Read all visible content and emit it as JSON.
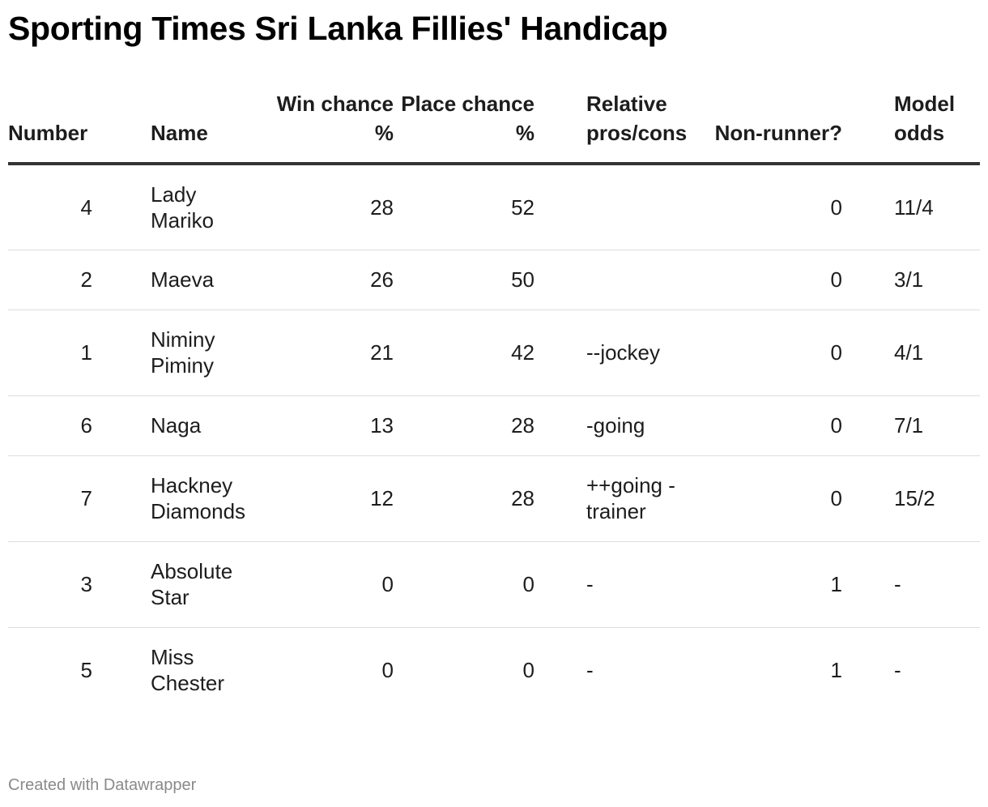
{
  "title": "Sporting Times Sri Lanka Fillies' Handicap",
  "footer": "Created with Datawrapper",
  "chart_data": {
    "type": "table",
    "columns": [
      "Number",
      "Name",
      "Win chance %",
      "Place chance %",
      "Relative pros/cons",
      "Non-runner?",
      "Model odds"
    ],
    "header": {
      "number": "Number",
      "name": "Name",
      "win": "Win chance %",
      "place": "Place chance %",
      "rel": "Relative pros/cons",
      "nr": "Non-runner?",
      "odds": "Model odds"
    },
    "rows": [
      {
        "number": "4",
        "name": "Lady Mariko",
        "win": "28",
        "place": "52",
        "rel": "",
        "nr": "0",
        "odds": "11/4"
      },
      {
        "number": "2",
        "name": "Maeva",
        "win": "26",
        "place": "50",
        "rel": "",
        "nr": "0",
        "odds": "3/1"
      },
      {
        "number": "1",
        "name": "Niminy Piminy",
        "win": "21",
        "place": "42",
        "rel": "--jockey",
        "nr": "0",
        "odds": "4/1"
      },
      {
        "number": "6",
        "name": "Naga",
        "win": "13",
        "place": "28",
        "rel": "-going",
        "nr": "0",
        "odds": "7/1"
      },
      {
        "number": "7",
        "name": "Hackney Diamonds",
        "win": "12",
        "place": "28",
        "rel": "++going -trainer",
        "nr": "0",
        "odds": "15/2"
      },
      {
        "number": "3",
        "name": "Absolute Star",
        "win": "0",
        "place": "0",
        "rel": "-",
        "nr": "1",
        "odds": "-"
      },
      {
        "number": "5",
        "name": "Miss Chester",
        "win": "0",
        "place": "0",
        "rel": "-",
        "nr": "1",
        "odds": "-"
      }
    ]
  }
}
